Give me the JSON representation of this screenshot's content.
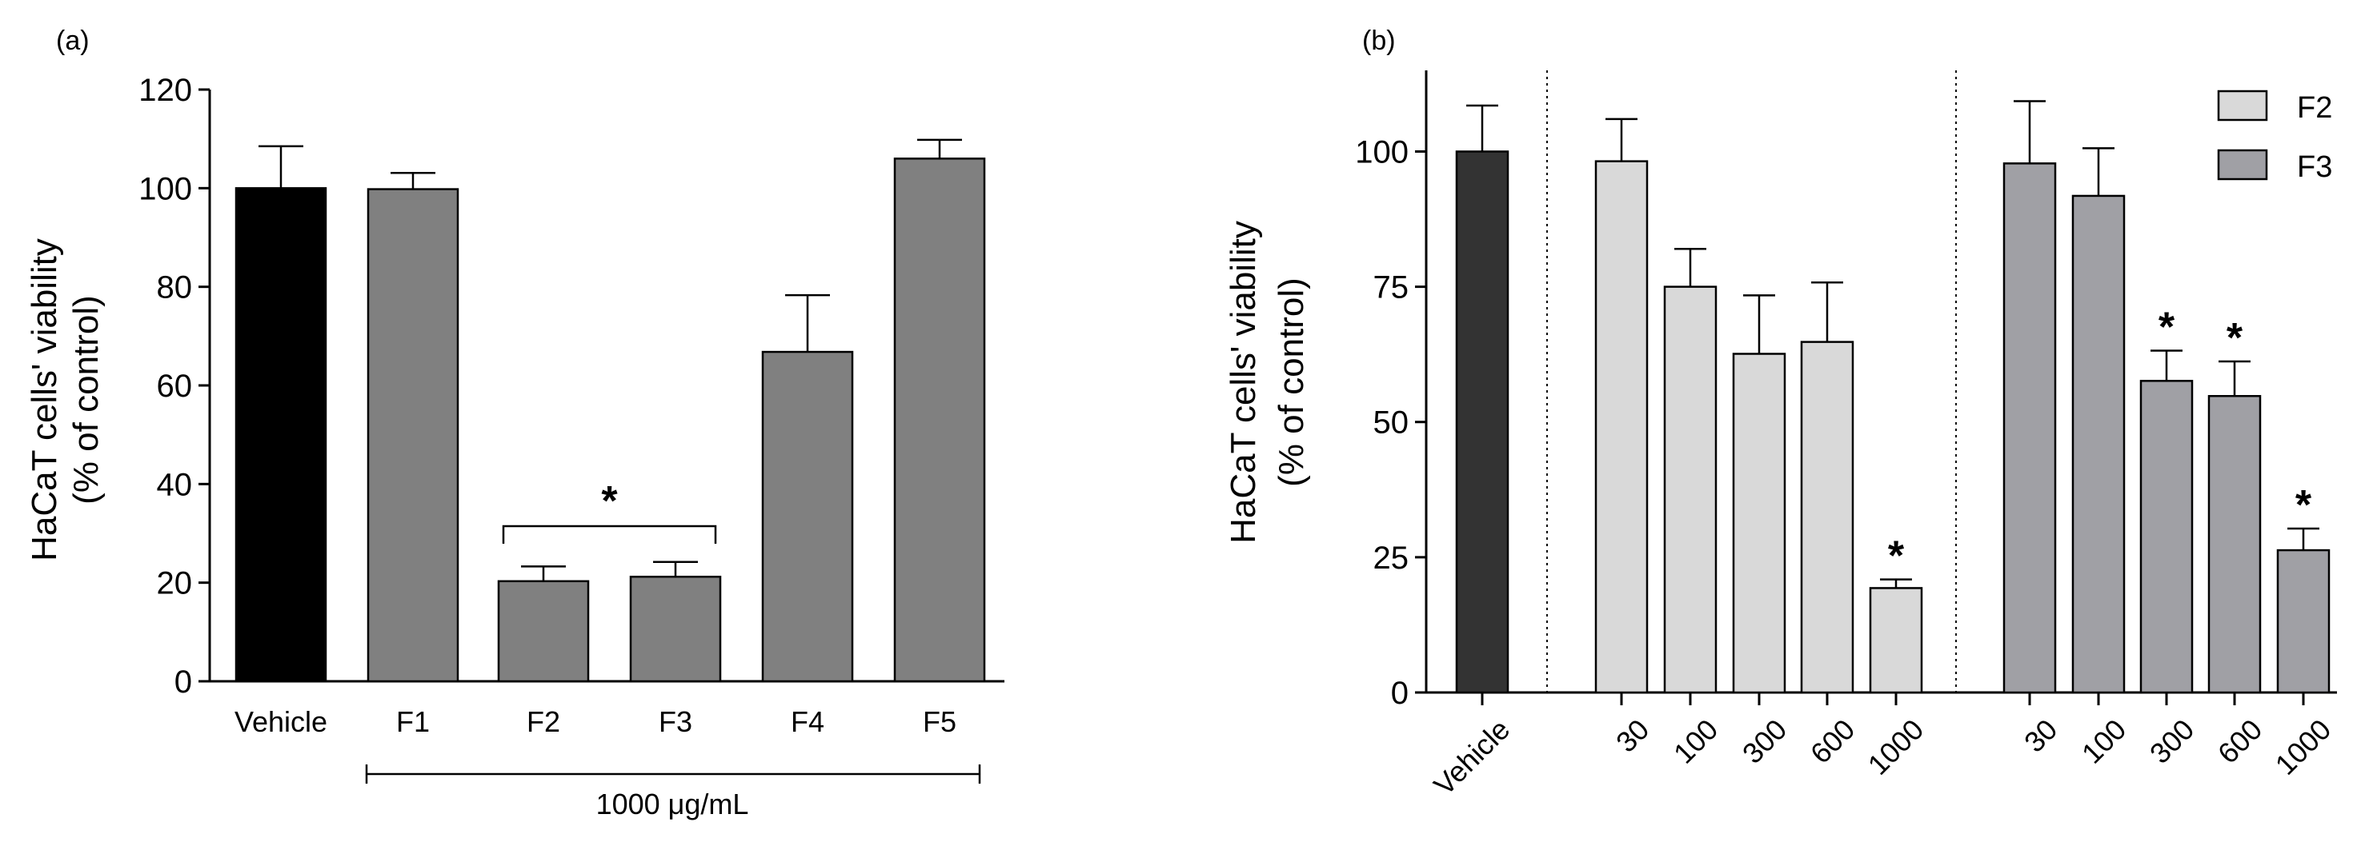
{
  "chart_data": [
    {
      "panel_label": "(a)",
      "type": "bar",
      "ylabel_line1": "HaCaT cells' viability",
      "ylabel_line2": "(% of control)",
      "ylim": [
        0,
        120
      ],
      "yticks": [
        0,
        20,
        40,
        60,
        80,
        100,
        120
      ],
      "categories": [
        "Vehicle",
        "F1",
        "F2",
        "F3",
        "F4",
        "F5"
      ],
      "values": [
        100,
        99.8,
        20.3,
        21.2,
        66.8,
        106
      ],
      "errors": [
        8.5,
        3.3,
        3.0,
        3.0,
        11.5,
        3.8
      ],
      "colors": [
        "#000000",
        "#808080",
        "#808080",
        "#808080",
        "#808080",
        "#808080"
      ],
      "bracket_label": "*",
      "range_label": "1000 μg/mL"
    },
    {
      "panel_label": "(b)",
      "type": "bar",
      "ylabel_line1": "HaCaT  cells' viability",
      "ylabel_line2": "(% of control)",
      "ylim": [
        0,
        115
      ],
      "yticks": [
        0,
        25,
        50,
        75,
        100
      ],
      "vehicle": {
        "label": "Vehicle",
        "value": 100,
        "error": 8.5,
        "color": "#333333"
      },
      "categories": [
        "30",
        "100",
        "300",
        "600",
        "1000"
      ],
      "series": [
        {
          "name": "F2",
          "color": "#d9d9d9",
          "values": [
            98.2,
            75,
            62.6,
            64.8,
            19.3
          ],
          "errors": [
            7.8,
            7.0,
            10.8,
            11.0,
            1.6
          ],
          "stars": [
            "",
            "",
            "",
            "",
            "*"
          ]
        },
        {
          "name": "F3",
          "color": "#a0a0a5",
          "values": [
            97.8,
            91.8,
            57.6,
            54.8,
            26.3
          ],
          "errors": [
            11.5,
            8.8,
            5.6,
            6.4,
            4.0
          ],
          "stars": [
            "",
            "",
            "*",
            "*",
            "*"
          ]
        }
      ]
    }
  ]
}
